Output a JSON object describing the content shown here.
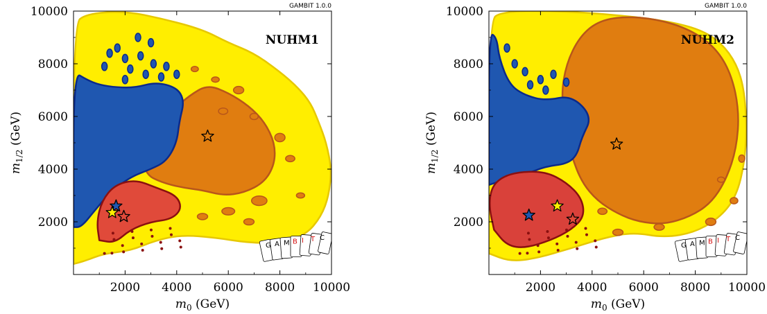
{
  "chart_data": [
    {
      "type": "contour",
      "panel_label": "NUHM1",
      "version_label": "GAMBIT 1.0.0",
      "xlabel": "m",
      "xlabel_sub": "0",
      "xlabel_unit": "(GeV)",
      "ylabel": "m",
      "ylabel_sub": "1/2",
      "ylabel_unit": "(GeV)",
      "xlim": [
        0,
        10000
      ],
      "ylim": [
        0,
        10000
      ],
      "xticks": [
        "2000",
        "4000",
        "6000",
        "8000",
        "10000"
      ],
      "yticks": [
        "2000",
        "4000",
        "6000",
        "8000",
        "10000"
      ],
      "regions": [
        {
          "name": "outer",
          "color": "#ffee00",
          "edge": "#e6c800"
        },
        {
          "name": "orange",
          "color": "#e07d10",
          "edge": "#b8561a"
        },
        {
          "name": "blue",
          "color": "#1f57b0",
          "edge": "#0b2a8a"
        },
        {
          "name": "red",
          "color": "#e04a3a",
          "edge": "#8a1010"
        }
      ],
      "best_fit_points": [
        {
          "x": 5200,
          "y": 5250,
          "color": "#e07d10"
        },
        {
          "x": 1650,
          "y": 2600,
          "color": "#1f57b0"
        },
        {
          "x": 1500,
          "y": 2350,
          "color": "#ffee00"
        },
        {
          "x": 1950,
          "y": 2200,
          "color": "#e04a3a"
        }
      ],
      "logo_cards": [
        "G",
        "A",
        "M",
        "B",
        "I",
        "T",
        "C"
      ]
    },
    {
      "type": "contour",
      "panel_label": "NUHM2",
      "version_label": "GAMBIT 1.0.0",
      "xlabel": "m",
      "xlabel_sub": "0",
      "xlabel_unit": "(GeV)",
      "ylabel": "m",
      "ylabel_sub": "1/2",
      "ylabel_unit": "(GeV)",
      "xlim": [
        0,
        10000
      ],
      "ylim": [
        0,
        10000
      ],
      "xticks": [
        "2000",
        "4000",
        "6000",
        "8000",
        "10000"
      ],
      "yticks": [
        "2000",
        "4000",
        "6000",
        "8000",
        "10000"
      ],
      "regions": [
        {
          "name": "outer",
          "color": "#ffee00",
          "edge": "#e6c800"
        },
        {
          "name": "orange",
          "color": "#e07d10",
          "edge": "#b8561a"
        },
        {
          "name": "blue",
          "color": "#1f57b0",
          "edge": "#0b2a8a"
        },
        {
          "name": "red",
          "color": "#d9413a",
          "edge": "#8a1010"
        }
      ],
      "best_fit_points": [
        {
          "x": 4950,
          "y": 4950,
          "color": "#e07d10"
        },
        {
          "x": 1550,
          "y": 2250,
          "color": "#1f57b0"
        },
        {
          "x": 2650,
          "y": 2600,
          "color": "#ffee00"
        },
        {
          "x": 3250,
          "y": 2100,
          "color": "#e04a3a"
        }
      ],
      "logo_cards": [
        "G",
        "A",
        "M",
        "B",
        "I",
        "T",
        "C"
      ]
    }
  ]
}
